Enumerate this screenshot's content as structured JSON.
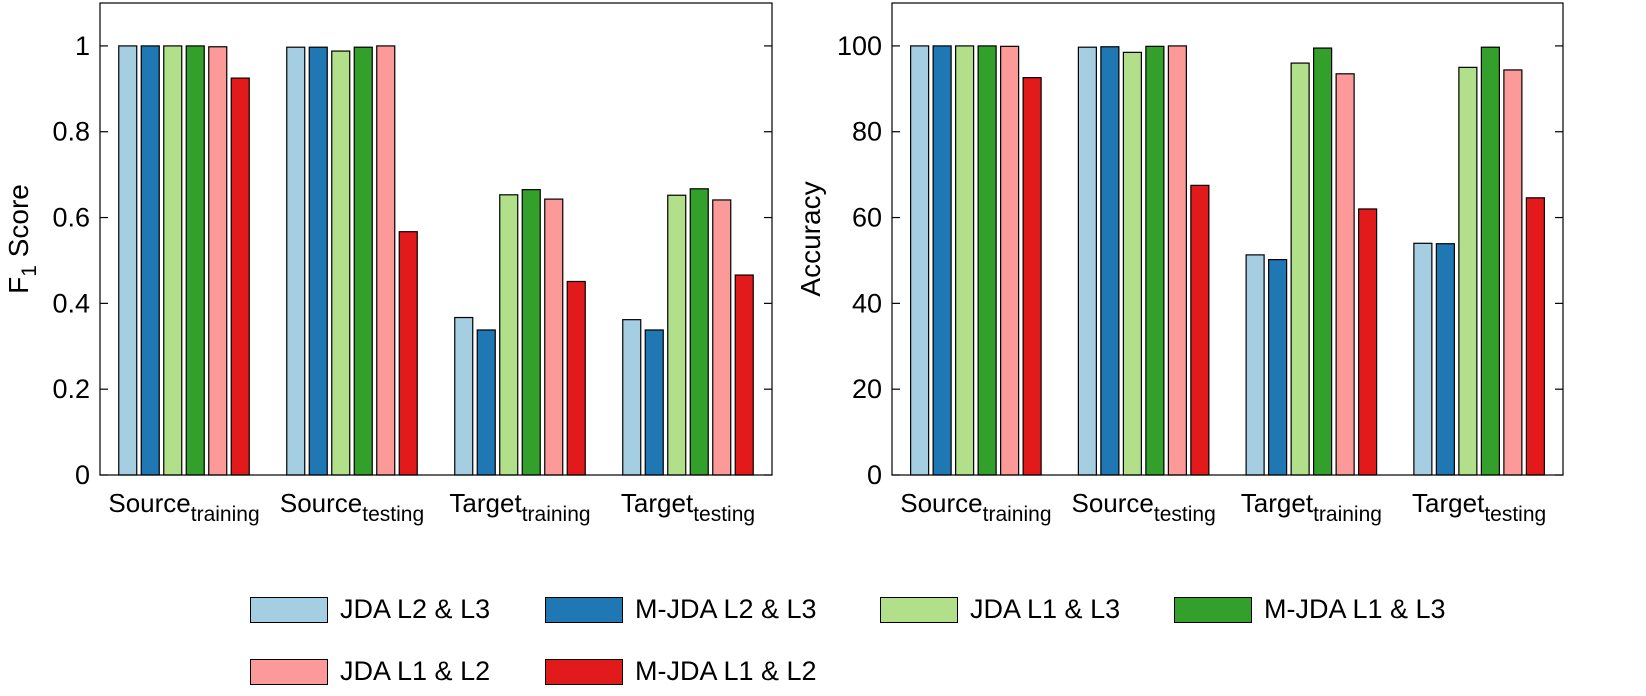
{
  "chart_data": [
    {
      "type": "bar",
      "title": "",
      "xlabel": "",
      "ylabel": "F",
      "ylabel_sub": "1",
      "ylabel_rest": " Score",
      "categories": [
        {
          "main": "Source",
          "sub": "training"
        },
        {
          "main": "Source",
          "sub": "testing"
        },
        {
          "main": "Target",
          "sub": "training"
        },
        {
          "main": "Target",
          "sub": "testing"
        }
      ],
      "ylim": [
        0,
        1.1
      ],
      "yticks": [
        0,
        0.2,
        0.4,
        0.6,
        0.8,
        1
      ],
      "ytick_labels": [
        "0",
        "0.2",
        "0.4",
        "0.6",
        "0.8",
        "1"
      ],
      "grid": false,
      "series": [
        {
          "name": "JDA L2 & L3",
          "color": "#a6cee3",
          "values": [
            1.0,
            0.997,
            0.367,
            0.362
          ]
        },
        {
          "name": "M-JDA L2 & L3",
          "color": "#1f78b4",
          "values": [
            1.0,
            0.997,
            0.338,
            0.338
          ]
        },
        {
          "name": "JDA L1 & L3",
          "color": "#b2df8a",
          "values": [
            1.0,
            0.988,
            0.653,
            0.652
          ]
        },
        {
          "name": "M-JDA L1 & L3",
          "color": "#33a02c",
          "values": [
            1.0,
            0.997,
            0.665,
            0.667
          ]
        },
        {
          "name": "JDA L1 & L2",
          "color": "#fb9a99",
          "values": [
            0.998,
            1.0,
            0.643,
            0.641
          ]
        },
        {
          "name": "M-JDA L1 & L2",
          "color": "#e31a1c",
          "values": [
            0.925,
            0.567,
            0.451,
            0.466
          ]
        }
      ]
    },
    {
      "type": "bar",
      "title": "",
      "xlabel": "",
      "ylabel": "Accuracy",
      "ylabel_sub": "",
      "ylabel_rest": "",
      "categories": [
        {
          "main": "Source",
          "sub": "training"
        },
        {
          "main": "Source",
          "sub": "testing"
        },
        {
          "main": "Target",
          "sub": "training"
        },
        {
          "main": "Target",
          "sub": "testing"
        }
      ],
      "ylim": [
        0,
        110
      ],
      "yticks": [
        0,
        20,
        40,
        60,
        80,
        100
      ],
      "ytick_labels": [
        "0",
        "20",
        "40",
        "60",
        "80",
        "100"
      ],
      "grid": false,
      "series": [
        {
          "name": "JDA L2 & L3",
          "color": "#a6cee3",
          "values": [
            100,
            99.7,
            51.3,
            54.0
          ]
        },
        {
          "name": "M-JDA L2 & L3",
          "color": "#1f78b4",
          "values": [
            100,
            99.8,
            50.2,
            53.9
          ]
        },
        {
          "name": "JDA L1 & L3",
          "color": "#b2df8a",
          "values": [
            100,
            98.5,
            96.0,
            95.0
          ]
        },
        {
          "name": "M-JDA L1 & L3",
          "color": "#33a02c",
          "values": [
            100,
            99.9,
            99.5,
            99.7
          ]
        },
        {
          "name": "JDA L1 & L2",
          "color": "#fb9a99",
          "values": [
            99.9,
            100,
            93.5,
            94.4
          ]
        },
        {
          "name": "M-JDA L1 & L2",
          "color": "#e31a1c",
          "values": [
            92.6,
            67.5,
            62.0,
            64.6
          ]
        }
      ]
    }
  ],
  "legend": {
    "placement": "bottom",
    "items": [
      {
        "label": "JDA L2 & L3",
        "color": "#a6cee3"
      },
      {
        "label": "M-JDA L2 & L3",
        "color": "#1f78b4"
      },
      {
        "label": "JDA L1 & L3",
        "color": "#b2df8a"
      },
      {
        "label": "M-JDA L1 & L3",
        "color": "#33a02c"
      },
      {
        "label": "JDA L1 & L2",
        "color": "#fb9a99"
      },
      {
        "label": "M-JDA L1 & L2",
        "color": "#e31a1c"
      }
    ]
  }
}
